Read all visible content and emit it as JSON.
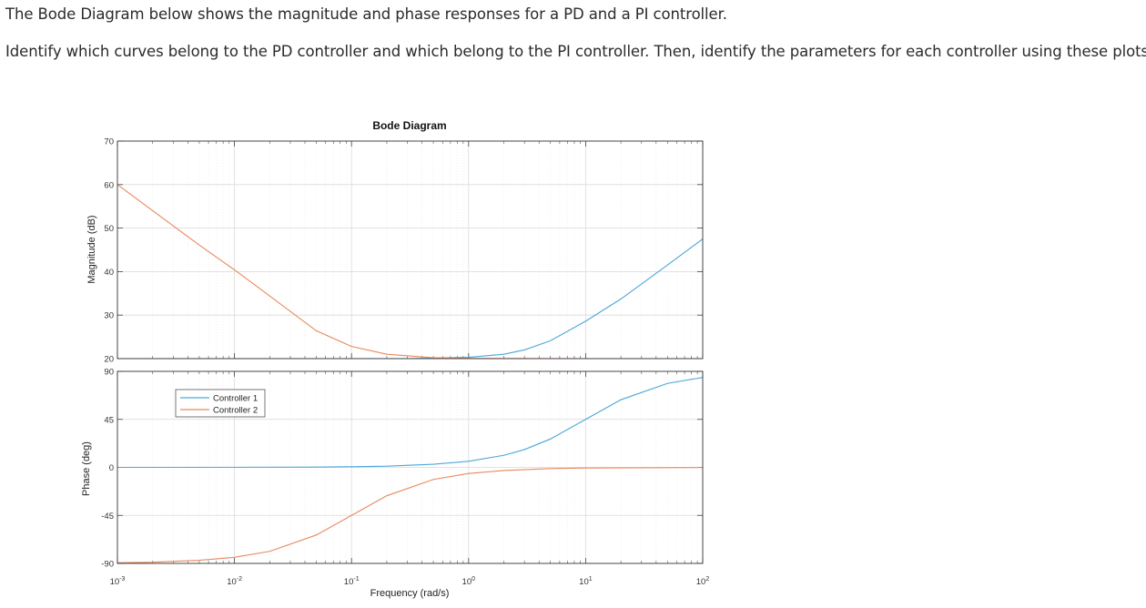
{
  "question": {
    "line1": "The Bode Diagram below shows the magnitude and phase responses for a PD and a PI controller.",
    "line2": "Identify which curves belong to the PD controller and which belong to the PI controller.  Then, identify the parameters for each controller using these plots."
  },
  "chart_data": {
    "type": "line",
    "title": "Bode Diagram",
    "xlabel": "Frequency  (rad/s)",
    "xscale": "log",
    "xlim": [
      0.001,
      100
    ],
    "x_tick_labels": [
      {
        "base": "10",
        "exp": "-3",
        "value": 0.001
      },
      {
        "base": "10",
        "exp": "-2",
        "value": 0.01
      },
      {
        "base": "10",
        "exp": "-1",
        "value": 0.1
      },
      {
        "base": "10",
        "exp": "0",
        "value": 1
      },
      {
        "base": "10",
        "exp": "1",
        "value": 10
      },
      {
        "base": "10",
        "exp": "2",
        "value": 100
      }
    ],
    "grid": true,
    "legend": {
      "placement": "upper-left of phase plot",
      "entries": [
        {
          "name": "Controller 1",
          "color": "#4da6d8"
        },
        {
          "name": "Controller 2",
          "color": "#e8895e"
        }
      ]
    },
    "magnitude": {
      "ylabel": "Magnitude (dB)",
      "ylim": [
        20,
        70
      ],
      "yticks": [
        20,
        30,
        40,
        50,
        60,
        70
      ],
      "series": [
        {
          "name": "Controller 1",
          "x": [
            0.001,
            0.01,
            0.1,
            0.3,
            0.5,
            1,
            2,
            3,
            5,
            10,
            20,
            50,
            100
          ],
          "y": [
            20,
            20,
            20,
            20,
            20.1,
            20.3,
            21,
            22,
            24.1,
            28.6,
            33.7,
            41.5,
            47.5
          ]
        },
        {
          "name": "Controller 2",
          "x": [
            0.001,
            0.002,
            0.005,
            0.01,
            0.02,
            0.05,
            0.1,
            0.2,
            0.5,
            1,
            10,
            100
          ],
          "y": [
            60,
            54,
            46.1,
            40.4,
            34.4,
            26.4,
            22.8,
            21,
            20.2,
            20.04,
            20,
            20
          ]
        }
      ]
    },
    "phase": {
      "ylabel": "Phase (deg)",
      "ylim": [
        -90,
        90
      ],
      "yticks": [
        -90,
        -45,
        0,
        45,
        90
      ],
      "series": [
        {
          "name": "Controller 1",
          "x": [
            0.001,
            0.01,
            0.05,
            0.1,
            0.2,
            0.5,
            1,
            2,
            3,
            5,
            10,
            20,
            50,
            100
          ],
          "y": [
            0,
            0.1,
            0.3,
            0.6,
            1.1,
            2.9,
            5.7,
            11.3,
            16.7,
            26.6,
            45,
            63.4,
            78.7,
            84.3
          ]
        },
        {
          "name": "Controller 2",
          "x": [
            0.001,
            0.002,
            0.005,
            0.01,
            0.02,
            0.05,
            0.1,
            0.2,
            0.5,
            1,
            2,
            5,
            10,
            100
          ],
          "y": [
            -89.4,
            -88.9,
            -87.1,
            -84.3,
            -78.7,
            -63.4,
            -45,
            -26.6,
            -11.3,
            -5.7,
            -2.9,
            -1.1,
            -0.6,
            -0.1
          ]
        }
      ]
    }
  },
  "colors": {
    "controller_1": "#4da6d8",
    "controller_2": "#e8895e"
  }
}
